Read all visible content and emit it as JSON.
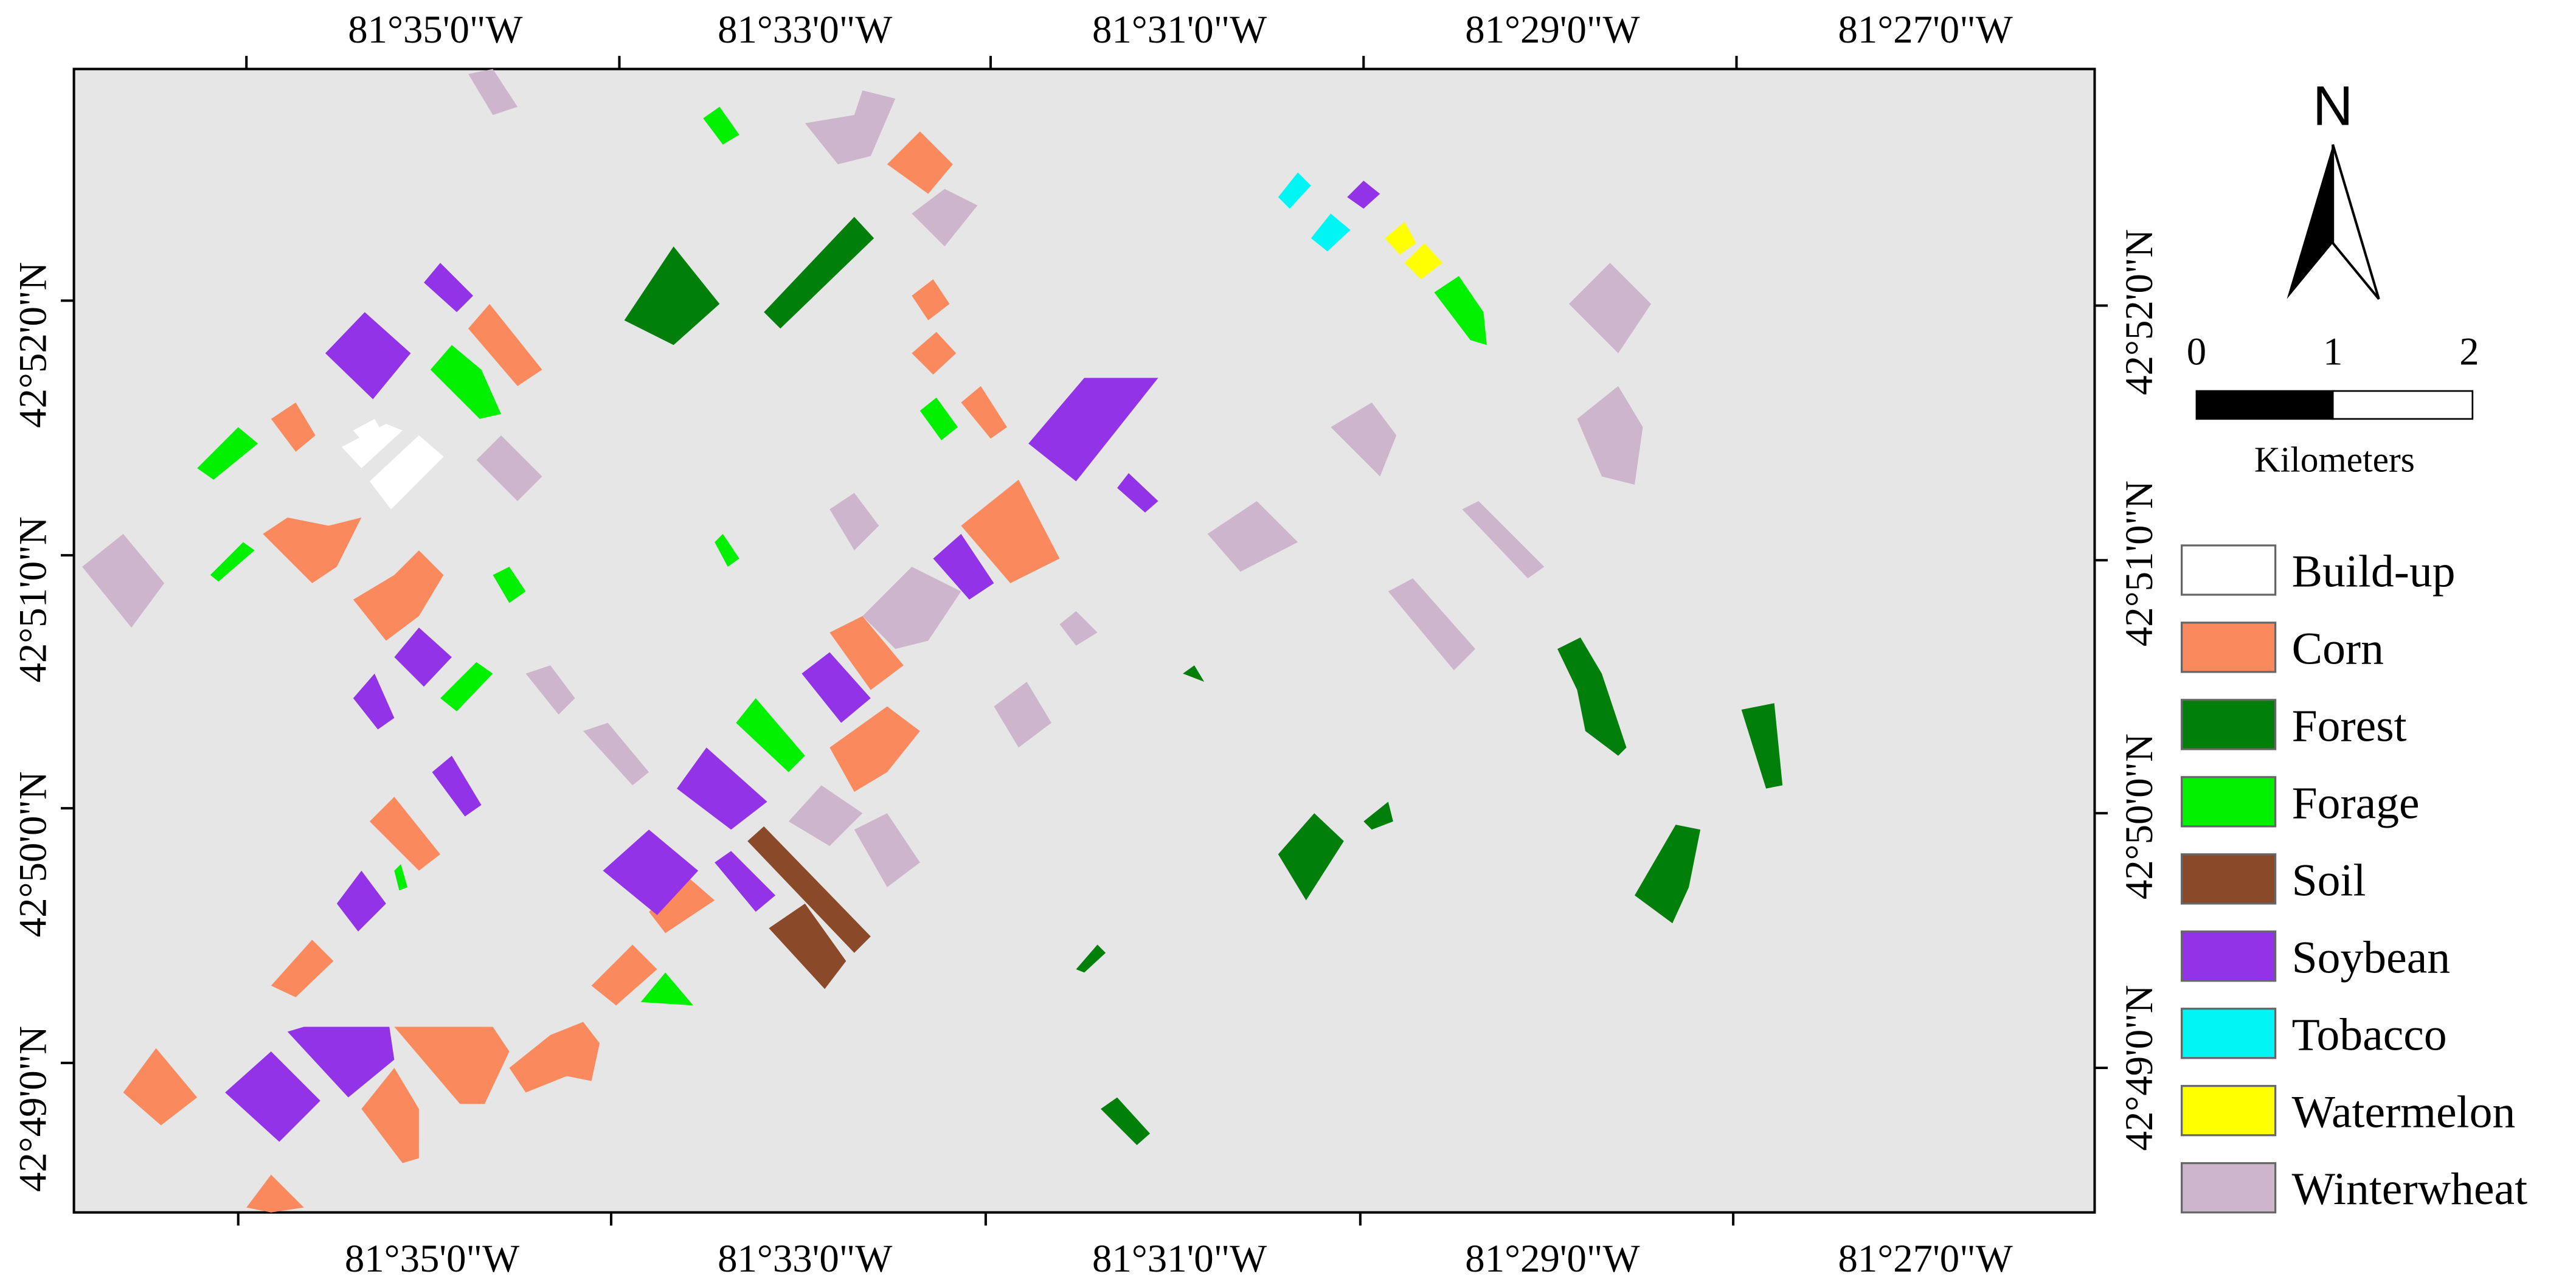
{
  "map": {
    "longitude_labels": [
      "81°35'0\"W",
      "81°33'0\"W",
      "81°31'0\"W",
      "81°29'0\"W",
      "81°27'0\"W"
    ],
    "latitude_labels": [
      "42°52'0\"N",
      "42°51'0\"N",
      "42°50'0\"N",
      "42°49'0\"N"
    ],
    "north_label": "N",
    "scale_bar": {
      "labels": [
        "0",
        "1",
        "2"
      ],
      "unit": "Kilometers"
    },
    "legend": {
      "classes": [
        {
          "name": "Build-up",
          "color": "#ffffff"
        },
        {
          "name": "Corn",
          "color": "#fa8a5e"
        },
        {
          "name": "Forest",
          "color": "#00800a"
        },
        {
          "name": "Forage",
          "color": "#00f000"
        },
        {
          "name": "Soil",
          "color": "#8a4a2a"
        },
        {
          "name": "Soybean",
          "color": "#9333e8"
        },
        {
          "name": "Tobacco",
          "color": "#00f5f5"
        },
        {
          "name": "Watermelon",
          "color": "#ffff00"
        },
        {
          "name": "Winterwheat",
          "color": "#cdb6cc"
        }
      ]
    }
  }
}
